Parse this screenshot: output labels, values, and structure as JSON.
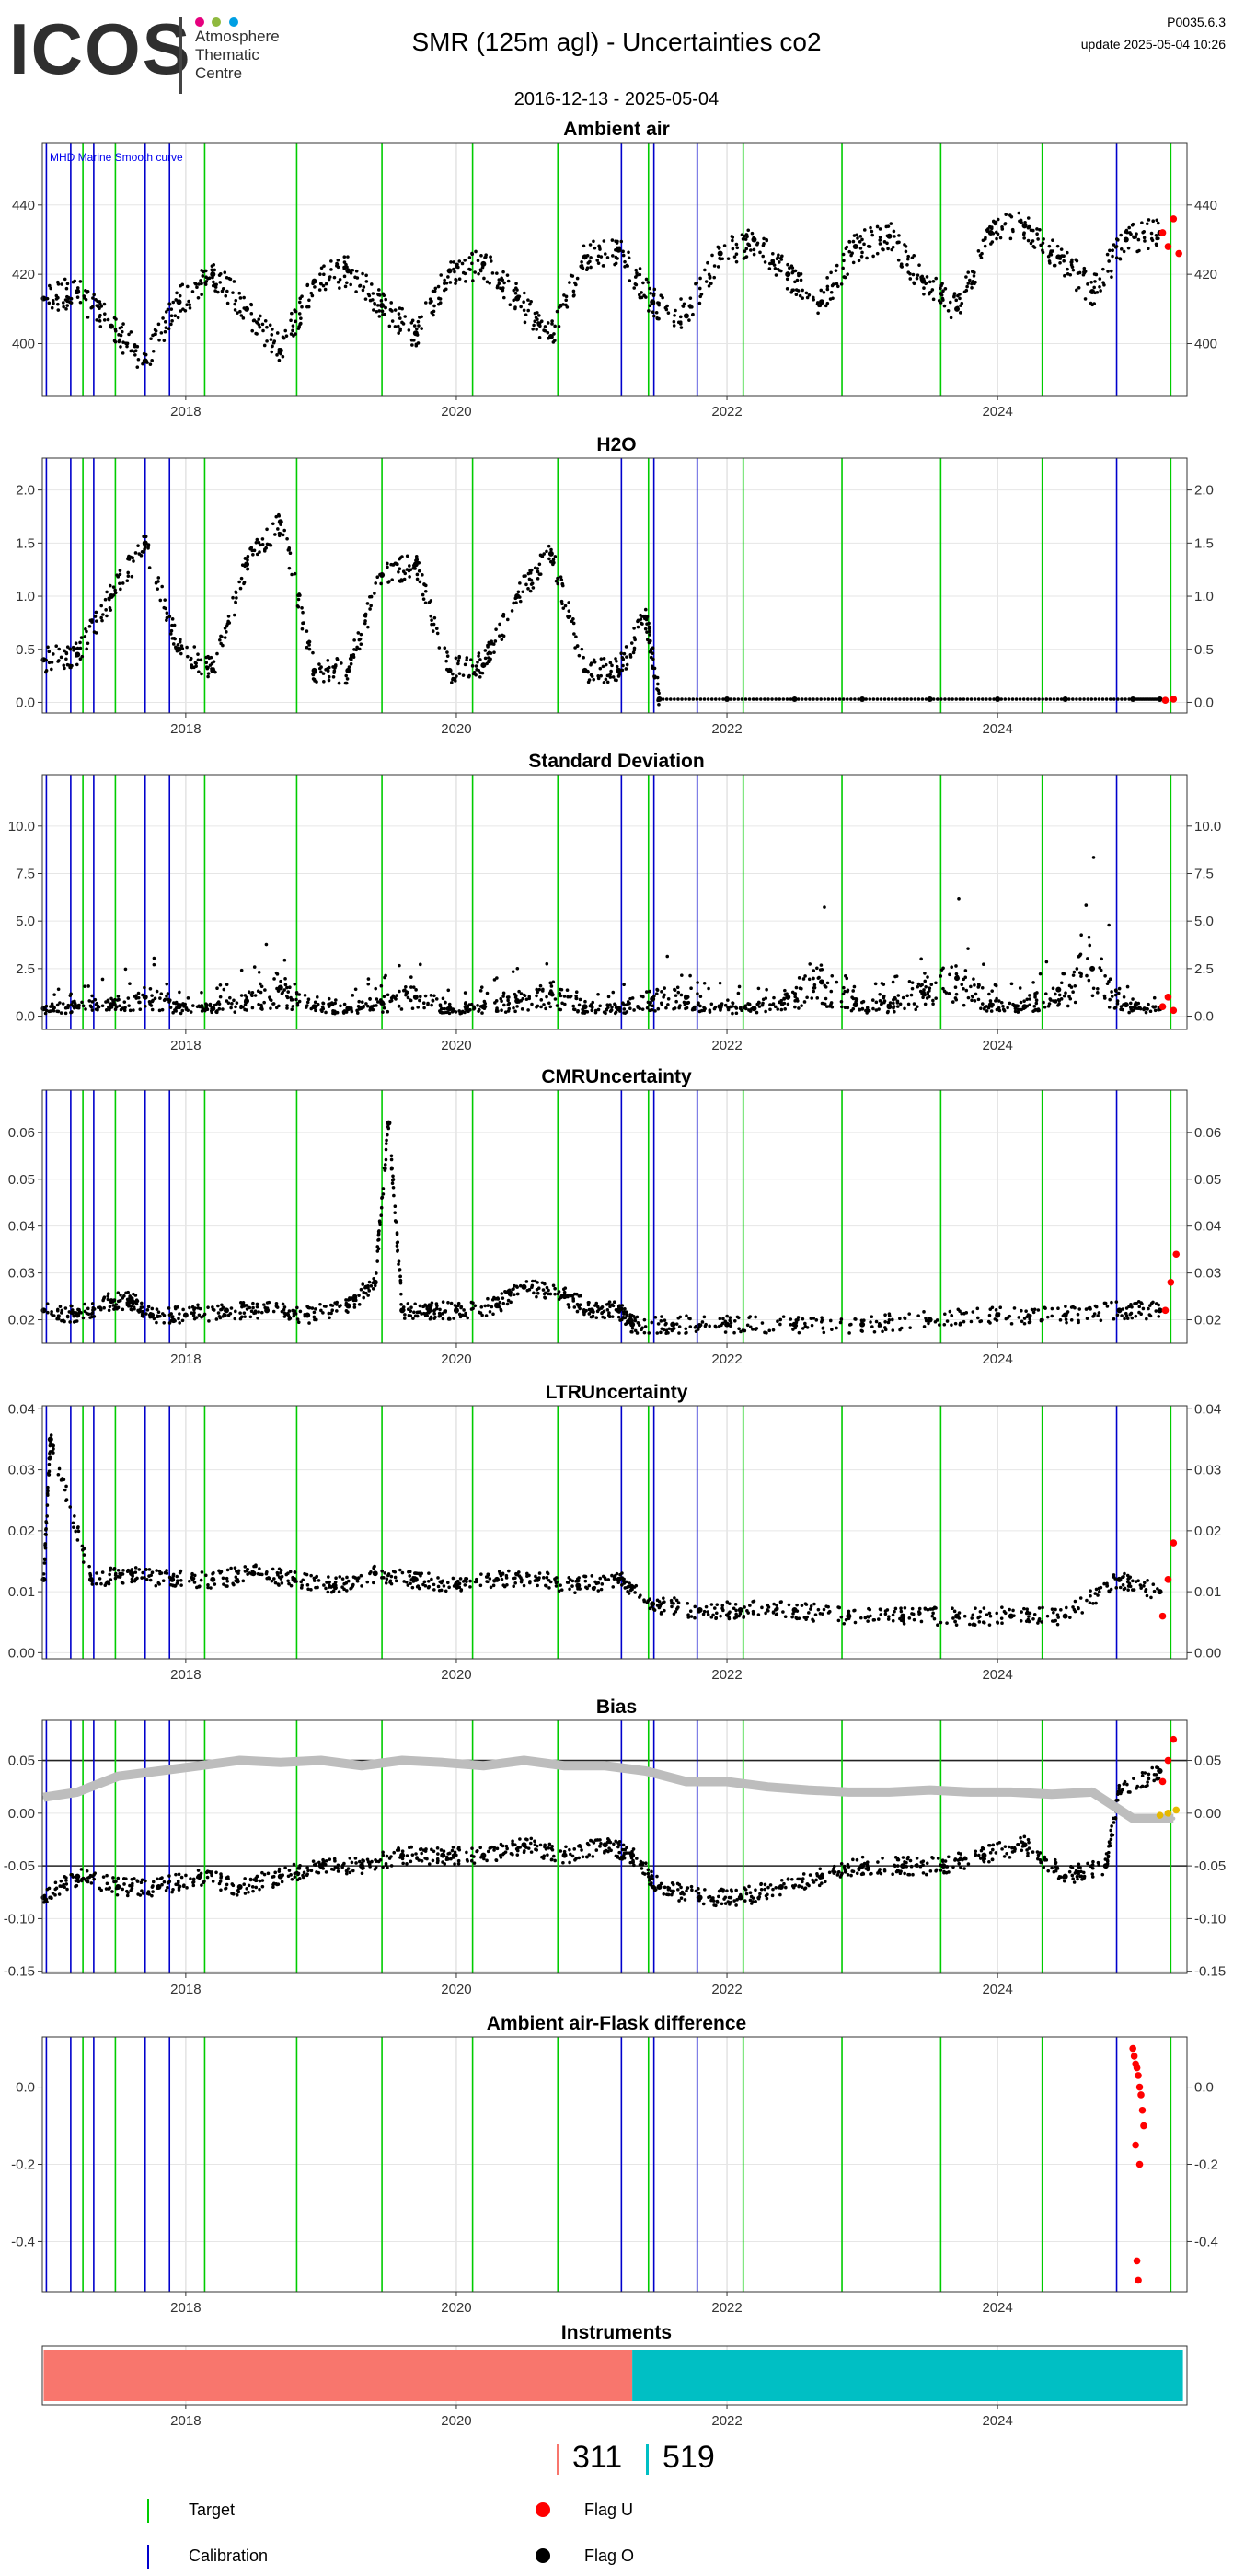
{
  "header": {
    "logo_text": "ICOS",
    "logo_sub": [
      "Atmosphere",
      "Thematic",
      "Centre"
    ],
    "logo_dot_colors": [
      "#e6007e",
      "#8fb93e",
      "#009fe3"
    ],
    "title": "SMR  (125m agl) - Uncertainties co2",
    "date_range": "2016-12-13 - 2025-05-04",
    "version": "P0035.6.3",
    "updated": "update  2025-05-04 10:26"
  },
  "events": {
    "target_color": "#00cc00",
    "calibration_color": "#0000cc",
    "target": [
      2017.24,
      2017.48,
      2018.14,
      2018.82,
      2019.45,
      2020.12,
      2020.75,
      2021.42,
      2022.12,
      2022.85,
      2023.58,
      2024.33,
      2025.28
    ],
    "calibration": [
      2016.97,
      2017.15,
      2017.32,
      2017.7,
      2017.88,
      2021.22,
      2021.46,
      2021.78,
      2024.88
    ]
  },
  "chart_data": [
    {
      "type": "scatter",
      "title": "Ambient air",
      "x_range": [
        2016.94,
        2025.4
      ],
      "ylim": [
        385,
        458
      ],
      "y_ticks": [
        400,
        420,
        440
      ],
      "x_ticks": [
        2018,
        2020,
        2022,
        2024
      ],
      "annotation": "MHD Marine Smooth curve",
      "series": [
        {
          "role": "measurement",
          "color": "#000000",
          "x": [
            2016.95,
            2017.2,
            2017.45,
            2017.7,
            2017.95,
            2018.2,
            2018.45,
            2018.7,
            2018.95,
            2019.2,
            2019.45,
            2019.7,
            2019.95,
            2020.2,
            2020.45,
            2020.7,
            2020.95,
            2021.2,
            2021.45,
            2021.7,
            2021.95,
            2022.2,
            2022.45,
            2022.7,
            2022.95,
            2023.2,
            2023.45,
            2023.7,
            2023.95,
            2024.2,
            2024.45,
            2024.7,
            2024.95,
            2025.2
          ],
          "y": [
            413,
            415,
            405,
            395,
            412,
            420,
            410,
            398,
            418,
            421,
            411,
            403,
            421,
            423,
            413,
            402,
            425,
            427,
            412,
            408,
            426,
            430,
            420,
            412,
            428,
            431,
            418,
            410,
            432,
            434,
            425,
            415,
            430,
            432
          ]
        },
        {
          "role": "flag_u",
          "color": "#ff0000",
          "x": [
            2025.22,
            2025.26,
            2025.3,
            2025.34
          ],
          "y": [
            432,
            428,
            436,
            426
          ]
        }
      ]
    },
    {
      "type": "scatter",
      "title": "H2O",
      "x_range": [
        2016.94,
        2025.4
      ],
      "ylim": [
        -0.1,
        2.3
      ],
      "y_ticks": [
        0.0,
        0.5,
        1.0,
        1.5,
        2.0
      ],
      "x_ticks": [
        2018,
        2020,
        2022,
        2024
      ],
      "series": [
        {
          "role": "measurement",
          "color": "#000000",
          "x": [
            2016.95,
            2017.2,
            2017.45,
            2017.7,
            2017.95,
            2018.2,
            2018.45,
            2018.7,
            2018.95,
            2019.2,
            2019.45,
            2019.7,
            2019.95,
            2020.2,
            2020.45,
            2020.7,
            2020.95,
            2021.2,
            2021.4,
            2021.5,
            2022.0,
            2022.5,
            2023.0,
            2023.5,
            2024.0,
            2024.5,
            2025.0,
            2025.2
          ],
          "y": [
            0.4,
            0.45,
            1.0,
            1.5,
            0.5,
            0.3,
            1.3,
            1.7,
            0.3,
            0.3,
            1.2,
            1.3,
            0.3,
            0.35,
            1.0,
            1.4,
            0.3,
            0.3,
            0.8,
            0.03,
            0.03,
            0.03,
            0.03,
            0.03,
            0.03,
            0.03,
            0.03,
            0.03
          ]
        },
        {
          "role": "flag_u",
          "color": "#ff0000",
          "x": [
            2025.24,
            2025.3
          ],
          "y": [
            0.02,
            0.03
          ]
        }
      ]
    },
    {
      "type": "scatter",
      "title": "Standard Deviation",
      "x_range": [
        2016.94,
        2025.4
      ],
      "ylim": [
        -0.7,
        12.7
      ],
      "y_ticks": [
        0.0,
        2.5,
        5.0,
        7.5,
        10.0
      ],
      "x_ticks": [
        2018,
        2020,
        2022,
        2024
      ],
      "series": [
        {
          "role": "measurement",
          "color": "#000000",
          "x": [
            2016.95,
            2017.2,
            2017.45,
            2017.7,
            2017.95,
            2018.2,
            2018.45,
            2018.7,
            2018.95,
            2019.2,
            2019.45,
            2019.7,
            2019.95,
            2020.2,
            2020.45,
            2020.7,
            2020.95,
            2021.2,
            2021.45,
            2021.7,
            2021.95,
            2022.2,
            2022.45,
            2022.7,
            2022.95,
            2023.2,
            2023.45,
            2023.7,
            2023.95,
            2024.2,
            2024.45,
            2024.7,
            2024.95,
            2025.2
          ],
          "y": [
            0.4,
            0.5,
            0.6,
            1.0,
            0.5,
            0.4,
            0.8,
            1.5,
            0.5,
            0.4,
            0.7,
            1.0,
            0.4,
            0.5,
            0.8,
            1.2,
            0.5,
            0.4,
            0.9,
            1.0,
            0.5,
            0.4,
            1.0,
            1.8,
            0.6,
            0.5,
            1.2,
            2.0,
            0.6,
            0.5,
            1.4,
            2.5,
            0.6,
            0.4
          ]
        },
        {
          "role": "flag_u",
          "color": "#ff0000",
          "x": [
            2025.22,
            2025.26,
            2025.3
          ],
          "y": [
            0.5,
            1.0,
            0.3
          ]
        }
      ]
    },
    {
      "type": "scatter",
      "title": "CMRUncertainty",
      "x_range": [
        2016.94,
        2025.4
      ],
      "ylim": [
        0.015,
        0.069
      ],
      "y_ticks": [
        0.02,
        0.03,
        0.04,
        0.05,
        0.06
      ],
      "x_ticks": [
        2018,
        2020,
        2022,
        2024
      ],
      "series": [
        {
          "role": "measurement",
          "color": "#000000",
          "x": [
            2016.95,
            2017.2,
            2017.45,
            2017.6,
            2017.75,
            2018.0,
            2018.3,
            2018.6,
            2018.9,
            2019.2,
            2019.4,
            2019.5,
            2019.6,
            2019.8,
            2020.0,
            2020.3,
            2020.5,
            2020.8,
            2021.0,
            2021.2,
            2021.3,
            2021.6,
            2022.0,
            2022.5,
            2023.0,
            2023.5,
            2024.0,
            2024.5,
            2024.9,
            2025.2
          ],
          "y": [
            0.022,
            0.021,
            0.024,
            0.024,
            0.021,
            0.021,
            0.022,
            0.022,
            0.021,
            0.023,
            0.028,
            0.062,
            0.022,
            0.022,
            0.022,
            0.023,
            0.027,
            0.025,
            0.022,
            0.022,
            0.019,
            0.019,
            0.019,
            0.019,
            0.019,
            0.02,
            0.021,
            0.021,
            0.022,
            0.022
          ]
        },
        {
          "role": "flag_u",
          "color": "#ff0000",
          "x": [
            2025.24,
            2025.28,
            2025.32
          ],
          "y": [
            0.022,
            0.028,
            0.034
          ]
        }
      ]
    },
    {
      "type": "scatter",
      "title": "LTRUncertainty",
      "x_range": [
        2016.94,
        2025.4
      ],
      "ylim": [
        -0.001,
        0.0405
      ],
      "y_ticks": [
        0.0,
        0.01,
        0.02,
        0.03,
        0.04
      ],
      "x_ticks": [
        2018,
        2020,
        2022,
        2024
      ],
      "series": [
        {
          "role": "measurement",
          "color": "#000000",
          "x": [
            2016.95,
            2017.0,
            2017.3,
            2017.6,
            2017.9,
            2018.2,
            2018.5,
            2018.8,
            2019.1,
            2019.4,
            2019.7,
            2020.0,
            2020.3,
            2020.6,
            2020.9,
            2021.2,
            2021.45,
            2021.8,
            2022.1,
            2022.5,
            2022.9,
            2023.3,
            2023.7,
            2024.1,
            2024.5,
            2024.9,
            2025.2
          ],
          "y": [
            0.012,
            0.035,
            0.012,
            0.013,
            0.012,
            0.012,
            0.013,
            0.012,
            0.011,
            0.013,
            0.012,
            0.011,
            0.012,
            0.012,
            0.011,
            0.012,
            0.008,
            0.007,
            0.007,
            0.007,
            0.006,
            0.006,
            0.006,
            0.006,
            0.006,
            0.012,
            0.01
          ]
        },
        {
          "role": "flag_u",
          "color": "#ff0000",
          "x": [
            2025.22,
            2025.26,
            2025.3
          ],
          "y": [
            0.006,
            0.012,
            0.018
          ]
        }
      ]
    },
    {
      "type": "scatter",
      "title": "Bias",
      "x_range": [
        2016.94,
        2025.4
      ],
      "ylim": [
        -0.152,
        0.088
      ],
      "y_ticks": [
        -0.15,
        -0.1,
        -0.05,
        0.0,
        0.05
      ],
      "x_ticks": [
        2018,
        2020,
        2022,
        2024
      ],
      "hlines": [
        0.05,
        -0.05
      ],
      "series": [
        {
          "role": "measurement",
          "color": "#000000",
          "x": [
            2016.95,
            2017.2,
            2017.5,
            2017.8,
            2018.1,
            2018.4,
            2018.7,
            2019.0,
            2019.3,
            2019.6,
            2019.9,
            2020.2,
            2020.5,
            2020.8,
            2021.1,
            2021.3,
            2021.5,
            2021.8,
            2022.1,
            2022.4,
            2022.7,
            2023.0,
            2023.3,
            2023.6,
            2023.9,
            2024.2,
            2024.5,
            2024.8,
            2024.9,
            2025.2
          ],
          "y": [
            -0.08,
            -0.06,
            -0.07,
            -0.07,
            -0.06,
            -0.07,
            -0.06,
            -0.05,
            -0.05,
            -0.04,
            -0.04,
            -0.04,
            -0.03,
            -0.04,
            -0.03,
            -0.04,
            -0.07,
            -0.08,
            -0.08,
            -0.07,
            -0.06,
            -0.05,
            -0.05,
            -0.05,
            -0.04,
            -0.03,
            -0.06,
            -0.05,
            0.02,
            0.04
          ]
        },
        {
          "role": "smooth",
          "color": "#bdbdbd",
          "x": [
            2016.95,
            2017.2,
            2017.5,
            2017.8,
            2018.1,
            2018.4,
            2018.7,
            2019.0,
            2019.3,
            2019.6,
            2019.9,
            2020.2,
            2020.5,
            2020.8,
            2021.1,
            2021.4,
            2021.7,
            2022.0,
            2022.3,
            2022.6,
            2022.9,
            2023.2,
            2023.5,
            2023.8,
            2024.1,
            2024.4,
            2024.7,
            2025.0,
            2025.3
          ],
          "y": [
            0.015,
            0.02,
            0.035,
            0.04,
            0.045,
            0.05,
            0.048,
            0.05,
            0.045,
            0.05,
            0.048,
            0.045,
            0.05,
            0.045,
            0.045,
            0.04,
            0.03,
            0.03,
            0.025,
            0.022,
            0.02,
            0.02,
            0.022,
            0.02,
            0.02,
            0.018,
            0.02,
            -0.005,
            -0.005
          ]
        },
        {
          "role": "flag_u",
          "color": "#ff0000",
          "x": [
            2025.22,
            2025.26,
            2025.3
          ],
          "y": [
            0.03,
            0.05,
            0.07
          ]
        },
        {
          "role": "flag_other",
          "color": "#e6b800",
          "x": [
            2025.2,
            2025.26,
            2025.32
          ],
          "y": [
            -0.002,
            0.0,
            0.003
          ]
        }
      ]
    },
    {
      "type": "scatter",
      "title": "Ambient air-Flask difference",
      "x_range": [
        2016.94,
        2025.4
      ],
      "ylim": [
        -0.53,
        0.13
      ],
      "y_ticks": [
        -0.4,
        -0.2,
        0.0
      ],
      "x_ticks": [
        2018,
        2020,
        2022,
        2024
      ],
      "series": [
        {
          "role": "flag_u",
          "color": "#ff0000",
          "x": [
            2025.0,
            2025.01,
            2025.02,
            2025.03,
            2025.04,
            2025.05,
            2025.06,
            2025.07,
            2025.08,
            2025.02,
            2025.05,
            2025.03,
            2025.04
          ],
          "y": [
            0.1,
            0.08,
            0.06,
            0.05,
            0.03,
            0.0,
            -0.02,
            -0.06,
            -0.1,
            -0.15,
            -0.2,
            -0.45,
            -0.5
          ]
        }
      ]
    },
    {
      "type": "bar",
      "title": "Instruments",
      "x_range": [
        2016.94,
        2025.4
      ],
      "x_ticks": [
        2018,
        2020,
        2022,
        2024
      ],
      "segments": [
        {
          "name": "311",
          "color": "#f8766d",
          "start": 2016.95,
          "end": 2021.3
        },
        {
          "name": "519",
          "color": "#00bfc4",
          "start": 2021.3,
          "end": 2025.37
        }
      ]
    }
  ],
  "instrument_counts": [
    {
      "label": "311",
      "color": "#f8766d"
    },
    {
      "label": "519",
      "color": "#00bfc4"
    }
  ],
  "legend": {
    "target": "Target",
    "calibration": "Calibration",
    "flag_u": "Flag U",
    "flag_o": "Flag O",
    "flag_u_color": "#ff0000",
    "flag_o_color": "#000000"
  }
}
